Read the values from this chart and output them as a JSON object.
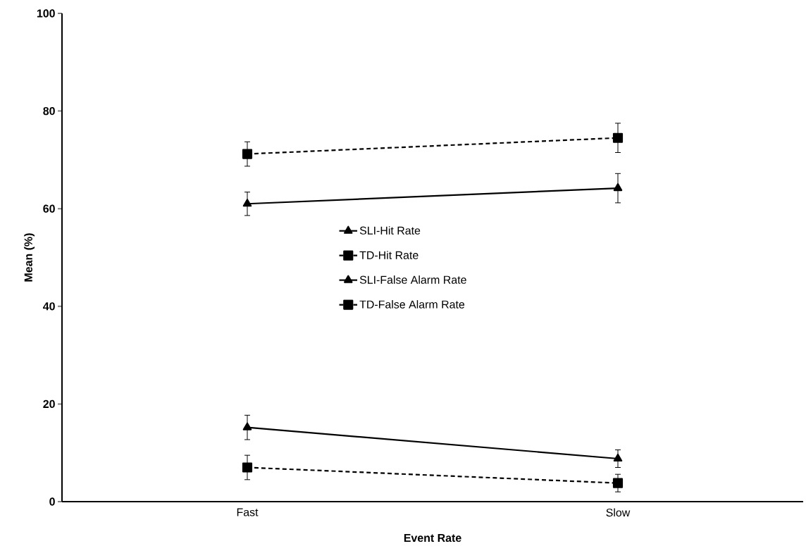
{
  "chart_data": {
    "type": "line",
    "xlabel": "Event Rate",
    "ylabel": "Mean (%)",
    "categories": [
      "Fast",
      "Slow"
    ],
    "ylim": [
      0,
      100
    ],
    "yticks": [
      0,
      20,
      40,
      60,
      80,
      100
    ],
    "grid": false,
    "legend": "center",
    "series": [
      {
        "name": "SLI-Hit Rate",
        "color": "#000000",
        "values": [
          61.0,
          64.2
        ],
        "errors": [
          2.4,
          3.0
        ],
        "marker": "triangle",
        "line_style": "solid"
      },
      {
        "name": "TD-Hit Rate",
        "color": "#000000",
        "values": [
          71.2,
          74.5
        ],
        "errors": [
          2.5,
          3.0
        ],
        "marker": "square",
        "line_style": "dashed"
      },
      {
        "name": "SLI-False Alarm Rate",
        "color": "#000000",
        "values": [
          15.2,
          8.8
        ],
        "errors": [
          2.5,
          1.8
        ],
        "marker": "triangle",
        "line_style": "solid"
      },
      {
        "name": "TD-False Alarm Rate",
        "color": "#000000",
        "values": [
          7.0,
          3.8
        ],
        "errors": [
          2.5,
          1.8
        ],
        "marker": "square",
        "line_style": "dashed"
      }
    ]
  }
}
